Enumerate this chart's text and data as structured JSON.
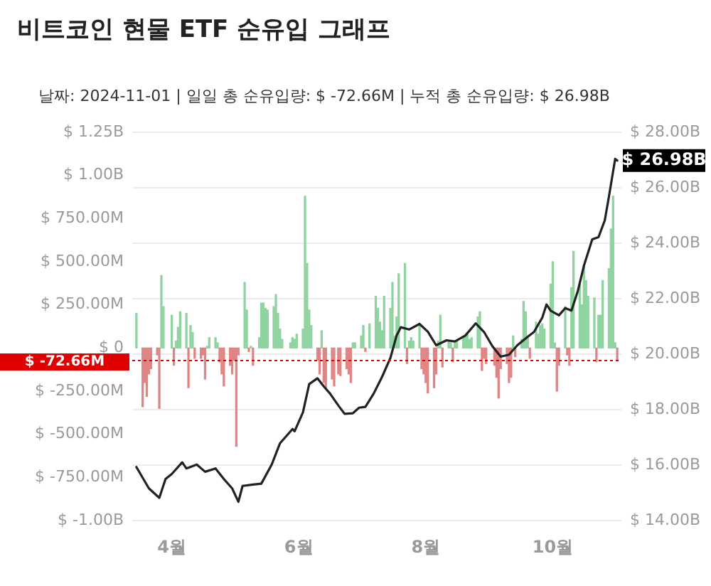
{
  "chart_data": {
    "type": "bar",
    "title": "비트코인 현물 ETF 순유입 그래프",
    "subtitle": "날짜: 2024-11-01 | 일일 총 순유입량: $ -72.66M | 누적 총 순유입량: $ 26.98B",
    "xlim": [
      "2024-03-13",
      "2024-11-03"
    ],
    "xticks": [
      {
        "value": "2024-04-01",
        "label": "4월"
      },
      {
        "value": "2024-06-01",
        "label": "6월"
      },
      {
        "value": "2024-08-01",
        "label": "8월"
      },
      {
        "value": "2024-10-01",
        "label": "10월"
      }
    ],
    "ylim": [
      -1000000000.0,
      1250000000.0
    ],
    "yticks": [
      {
        "value": 1250000000.0,
        "label": "$ 1.25B"
      },
      {
        "value": 1000000000.0,
        "label": "$ 1.00B"
      },
      {
        "value": 750000000.0,
        "label": "$ 750.00M"
      },
      {
        "value": 500000000.0,
        "label": "$ 500.00M"
      },
      {
        "value": 250000000.0,
        "label": "$ 250.00M"
      },
      {
        "value": 0,
        "label": "$ 0"
      },
      {
        "value": -250000000.0,
        "label": "$ -250.00M"
      },
      {
        "value": -500000000.0,
        "label": "$ -500.00M"
      },
      {
        "value": -750000000.0,
        "label": "$ -750.00M"
      },
      {
        "value": -1000000000.0,
        "label": "$ -1.00B"
      }
    ],
    "y2lim": [
      14,
      28
    ],
    "y2ticks": [
      {
        "value": 28,
        "label": "$ 28.00B"
      },
      {
        "value": 26,
        "label": "$ 26.00B"
      },
      {
        "value": 24,
        "label": "$ 24.00B"
      },
      {
        "value": 22,
        "label": "$ 22.00B"
      },
      {
        "value": 20,
        "label": "$ 20.00B"
      },
      {
        "value": 18,
        "label": "$ 18.00B"
      },
      {
        "value": 16,
        "label": "$ 16.00B"
      },
      {
        "value": 14,
        "label": "$ 14.00B"
      }
    ],
    "grid": "y2",
    "legend": false,
    "marker": "none",
    "line_style": "solid",
    "ref_lines": [
      {
        "axis": "y",
        "value": -72660000.0,
        "label": "$ -72.66M",
        "color": "#e00000",
        "line_style": "dotted"
      }
    ],
    "annotations": [
      "$ 26.98B"
    ],
    "series": [
      {
        "axis": "y",
        "x": [
          "2024-03-15",
          "2024-03-18",
          "2024-03-19",
          "2024-03-20",
          "2024-03-21",
          "2024-03-22",
          "2024-03-25",
          "2024-03-26",
          "2024-03-27",
          "2024-03-28",
          "2024-04-01",
          "2024-04-02",
          "2024-04-03",
          "2024-04-04",
          "2024-04-05",
          "2024-04-08",
          "2024-04-09",
          "2024-04-10",
          "2024-04-11",
          "2024-04-12",
          "2024-04-15",
          "2024-04-16",
          "2024-04-17",
          "2024-04-18",
          "2024-04-19",
          "2024-04-22",
          "2024-04-23",
          "2024-04-24",
          "2024-04-25",
          "2024-04-26",
          "2024-04-29",
          "2024-04-30",
          "2024-05-01",
          "2024-05-02",
          "2024-05-03",
          "2024-05-06",
          "2024-05-07",
          "2024-05-08",
          "2024-05-09",
          "2024-05-10",
          "2024-05-13",
          "2024-05-14",
          "2024-05-15",
          "2024-05-16",
          "2024-05-17",
          "2024-05-20",
          "2024-05-21",
          "2024-05-22",
          "2024-05-23",
          "2024-05-24",
          "2024-05-28",
          "2024-05-29",
          "2024-05-30",
          "2024-05-31",
          "2024-06-03",
          "2024-06-04",
          "2024-06-05",
          "2024-06-06",
          "2024-06-07",
          "2024-06-10",
          "2024-06-11",
          "2024-06-12",
          "2024-06-13",
          "2024-06-14",
          "2024-06-17",
          "2024-06-18",
          "2024-06-20",
          "2024-06-21",
          "2024-06-24",
          "2024-06-25",
          "2024-06-26",
          "2024-06-27",
          "2024-06-28",
          "2024-07-01",
          "2024-07-02",
          "2024-07-03",
          "2024-07-05",
          "2024-07-08",
          "2024-07-09",
          "2024-07-10",
          "2024-07-11",
          "2024-07-12",
          "2024-07-15",
          "2024-07-16",
          "2024-07-17",
          "2024-07-18",
          "2024-07-19",
          "2024-07-22",
          "2024-07-23",
          "2024-07-24",
          "2024-07-25",
          "2024-07-26",
          "2024-07-29",
          "2024-07-30",
          "2024-07-31",
          "2024-08-01",
          "2024-08-02",
          "2024-08-05",
          "2024-08-06",
          "2024-08-07",
          "2024-08-08",
          "2024-08-09",
          "2024-08-12",
          "2024-08-13",
          "2024-08-14",
          "2024-08-15",
          "2024-08-16",
          "2024-08-19",
          "2024-08-20",
          "2024-08-21",
          "2024-08-22",
          "2024-08-23",
          "2024-08-26",
          "2024-08-27",
          "2024-08-28",
          "2024-08-29",
          "2024-08-30",
          "2024-09-03",
          "2024-09-04",
          "2024-09-05",
          "2024-09-06",
          "2024-09-09",
          "2024-09-10",
          "2024-09-11",
          "2024-09-12",
          "2024-09-13",
          "2024-09-16",
          "2024-09-17",
          "2024-09-18",
          "2024-09-19",
          "2024-09-20",
          "2024-09-23",
          "2024-09-24",
          "2024-09-25",
          "2024-09-26",
          "2024-09-27",
          "2024-09-30",
          "2024-10-01",
          "2024-10-02",
          "2024-10-03",
          "2024-10-04",
          "2024-10-07",
          "2024-10-08",
          "2024-10-09",
          "2024-10-10",
          "2024-10-11",
          "2024-10-14",
          "2024-10-15",
          "2024-10-16",
          "2024-10-17",
          "2024-10-18",
          "2024-10-21",
          "2024-10-22",
          "2024-10-23",
          "2024-10-24",
          "2024-10-25",
          "2024-10-28",
          "2024-10-29",
          "2024-10-30",
          "2024-10-31",
          "2024-11-01"
        ],
        "values": [
          200000000.0,
          -340000000.0,
          -200000000.0,
          -280000000.0,
          -150000000.0,
          -120000000.0,
          -40000000.0,
          -350000000.0,
          420000000.0,
          240000000.0,
          190000000.0,
          -100000000.0,
          40000000.0,
          120000000.0,
          210000000.0,
          200000000.0,
          -230000000.0,
          130000000.0,
          90000000.0,
          -60000000.0,
          -60000000.0,
          -40000000.0,
          -180000000.0,
          10000000.0,
          60000000.0,
          60000000.0,
          30000000.0,
          -80000000.0,
          -150000000.0,
          -220000000.0,
          -100000000.0,
          -150000000.0,
          -70000000.0,
          -570000000.0,
          -40000000.0,
          380000000.0,
          220000000.0,
          -20000000.0,
          10000000.0,
          -100000000.0,
          60000000.0,
          260000000.0,
          260000000.0,
          230000000.0,
          220000000.0,
          240000000.0,
          310000000.0,
          200000000.0,
          110000000.0,
          50000000.0,
          30000000.0,
          60000000.0,
          50000000.0,
          80000000.0,
          110000000.0,
          880000000.0,
          490000000.0,
          220000000.0,
          130000000.0,
          -70000000.0,
          -150000000.0,
          100000000.0,
          -200000000.0,
          -230000000.0,
          -180000000.0,
          -220000000.0,
          -150000000.0,
          -160000000.0,
          -120000000.0,
          -150000000.0,
          -200000000.0,
          30000000.0,
          30000000.0,
          70000000.0,
          130000000.0,
          -20000000.0,
          140000000.0,
          300000000.0,
          230000000.0,
          150000000.0,
          100000000.0,
          300000000.0,
          230000000.0,
          380000000.0,
          70000000.0,
          180000000.0,
          430000000.0,
          490000000.0,
          -90000000.0,
          40000000.0,
          60000000.0,
          40000000.0,
          130000000.0,
          -120000000.0,
          -150000000.0,
          -200000000.0,
          -260000000.0,
          -230000000.0,
          -150000000.0,
          40000000.0,
          190000000.0,
          -110000000.0,
          40000000.0,
          30000000.0,
          -80000000.0,
          30000000.0,
          40000000.0,
          70000000.0,
          70000000.0,
          90000000.0,
          50000000.0,
          60000000.0,
          180000000.0,
          210000000.0,
          -130000000.0,
          -60000000.0,
          -90000000.0,
          -100000000.0,
          -170000000.0,
          -290000000.0,
          -120000000.0,
          -90000000.0,
          -200000000.0,
          -170000000.0,
          70000000.0,
          -50000000.0,
          50000000.0,
          270000000.0,
          210000000.0,
          70000000.0,
          -60000000.0,
          150000000.0,
          80000000.0,
          130000000.0,
          140000000.0,
          110000000.0,
          370000000.0,
          500000000.0,
          30000000.0,
          -250000000.0,
          -100000000.0,
          240000000.0,
          -40000000.0,
          -100000000.0,
          350000000.0,
          560000000.0,
          370000000.0,
          250000000.0,
          480000000.0,
          390000000.0,
          300000000.0,
          290000000.0,
          -80000000.0,
          190000000.0,
          190000000.0,
          390000000.0,
          460000000.0,
          690000000.0,
          880000000.0,
          30000000.0,
          -72660000.0
        ],
        "colors": [
          "#8fd3a0",
          "#e08585",
          "#e08585",
          "#e08585",
          "#e08585",
          "#e08585",
          "#e08585",
          "#e08585",
          "#8fd3a0",
          "#8fd3a0",
          "#8fd3a0",
          "#e08585",
          "#8fd3a0",
          "#8fd3a0",
          "#8fd3a0",
          "#8fd3a0",
          "#e08585",
          "#8fd3a0",
          "#8fd3a0",
          "#e08585",
          "#e08585",
          "#e08585",
          "#e08585",
          "#8fd3a0",
          "#8fd3a0",
          "#8fd3a0",
          "#8fd3a0",
          "#e08585",
          "#e08585",
          "#e08585",
          "#e08585",
          "#e08585",
          "#e08585",
          "#e08585",
          "#e08585",
          "#8fd3a0",
          "#8fd3a0",
          "#e08585",
          "#8fd3a0",
          "#e08585",
          "#8fd3a0",
          "#8fd3a0",
          "#8fd3a0",
          "#8fd3a0",
          "#8fd3a0",
          "#8fd3a0",
          "#8fd3a0",
          "#8fd3a0",
          "#8fd3a0",
          "#8fd3a0",
          "#8fd3a0",
          "#8fd3a0",
          "#8fd3a0",
          "#8fd3a0",
          "#8fd3a0",
          "#8fd3a0",
          "#8fd3a0",
          "#8fd3a0",
          "#8fd3a0",
          "#e08585",
          "#e08585",
          "#8fd3a0",
          "#e08585",
          "#e08585",
          "#e08585",
          "#e08585",
          "#e08585",
          "#e08585",
          "#e08585",
          "#e08585",
          "#e08585",
          "#8fd3a0",
          "#8fd3a0",
          "#8fd3a0",
          "#8fd3a0",
          "#e08585",
          "#8fd3a0",
          "#8fd3a0",
          "#8fd3a0",
          "#8fd3a0",
          "#8fd3a0",
          "#8fd3a0",
          "#8fd3a0",
          "#8fd3a0",
          "#8fd3a0",
          "#8fd3a0",
          "#8fd3a0",
          "#8fd3a0",
          "#e08585",
          "#8fd3a0",
          "#8fd3a0",
          "#8fd3a0",
          "#8fd3a0",
          "#e08585",
          "#e08585",
          "#e08585",
          "#e08585",
          "#e08585",
          "#e08585",
          "#8fd3a0",
          "#8fd3a0",
          "#e08585",
          "#8fd3a0",
          "#8fd3a0",
          "#e08585",
          "#8fd3a0",
          "#8fd3a0",
          "#8fd3a0",
          "#8fd3a0",
          "#8fd3a0",
          "#8fd3a0",
          "#8fd3a0",
          "#8fd3a0",
          "#8fd3a0",
          "#e08585",
          "#e08585",
          "#e08585",
          "#e08585",
          "#e08585",
          "#e08585",
          "#e08585",
          "#e08585",
          "#e08585",
          "#e08585",
          "#8fd3a0",
          "#e08585",
          "#8fd3a0",
          "#8fd3a0",
          "#8fd3a0",
          "#8fd3a0",
          "#e08585",
          "#8fd3a0",
          "#8fd3a0",
          "#8fd3a0",
          "#8fd3a0",
          "#8fd3a0",
          "#8fd3a0",
          "#8fd3a0",
          "#8fd3a0",
          "#e08585",
          "#e08585",
          "#8fd3a0",
          "#e08585",
          "#e08585",
          "#8fd3a0",
          "#8fd3a0",
          "#8fd3a0",
          "#8fd3a0",
          "#8fd3a0",
          "#8fd3a0",
          "#8fd3a0",
          "#8fd3a0",
          "#e08585",
          "#8fd3a0",
          "#8fd3a0",
          "#8fd3a0",
          "#8fd3a0",
          "#8fd3a0",
          "#8fd3a0",
          "#8fd3a0",
          "#e08585"
        ]
      },
      {
        "type": "line",
        "axis": "y2",
        "color": "#222222",
        "x": [
          "2024-03-15",
          "2024-03-21",
          "2024-03-26",
          "2024-03-29",
          "2024-04-01",
          "2024-04-06",
          "2024-04-08",
          "2024-04-13",
          "2024-04-17",
          "2024-04-22",
          "2024-04-26",
          "2024-04-30",
          "2024-05-03",
          "2024-05-05",
          "2024-05-10",
          "2024-05-14",
          "2024-05-19",
          "2024-05-23",
          "2024-05-29",
          "2024-05-30",
          "2024-06-03",
          "2024-06-06",
          "2024-06-10",
          "2024-06-13",
          "2024-06-16",
          "2024-06-20",
          "2024-06-23",
          "2024-06-27",
          "2024-06-30",
          "2024-07-03",
          "2024-07-07",
          "2024-07-11",
          "2024-07-15",
          "2024-07-18",
          "2024-07-20",
          "2024-07-24",
          "2024-07-29",
          "2024-08-02",
          "2024-08-06",
          "2024-08-11",
          "2024-08-15",
          "2024-08-20",
          "2024-08-25",
          "2024-08-29",
          "2024-09-02",
          "2024-09-06",
          "2024-09-10",
          "2024-09-14",
          "2024-09-19",
          "2024-09-22",
          "2024-09-26",
          "2024-09-28",
          "2024-09-30",
          "2024-10-04",
          "2024-10-07",
          "2024-10-10",
          "2024-10-13",
          "2024-10-16",
          "2024-10-20",
          "2024-10-23",
          "2024-10-26",
          "2024-10-28",
          "2024-10-31",
          "2024-11-01"
        ],
        "values": [
          15.93,
          15.16,
          14.82,
          15.5,
          15.68,
          16.1,
          15.88,
          16.02,
          15.76,
          15.88,
          15.5,
          15.16,
          14.68,
          15.25,
          15.3,
          15.33,
          16.02,
          16.79,
          17.3,
          17.22,
          17.9,
          18.92,
          19.13,
          18.84,
          18.58,
          18.15,
          17.85,
          17.87,
          18.07,
          18.1,
          18.58,
          19.18,
          19.86,
          20.67,
          20.97,
          20.89,
          21.09,
          20.81,
          20.32,
          20.5,
          20.46,
          20.67,
          21.11,
          20.8,
          20.29,
          19.91,
          19.98,
          20.32,
          20.63,
          20.8,
          21.32,
          21.79,
          21.57,
          21.4,
          21.66,
          21.57,
          22.26,
          23.19,
          24.14,
          24.22,
          24.82,
          25.68,
          27.04,
          26.98
        ]
      }
    ]
  }
}
